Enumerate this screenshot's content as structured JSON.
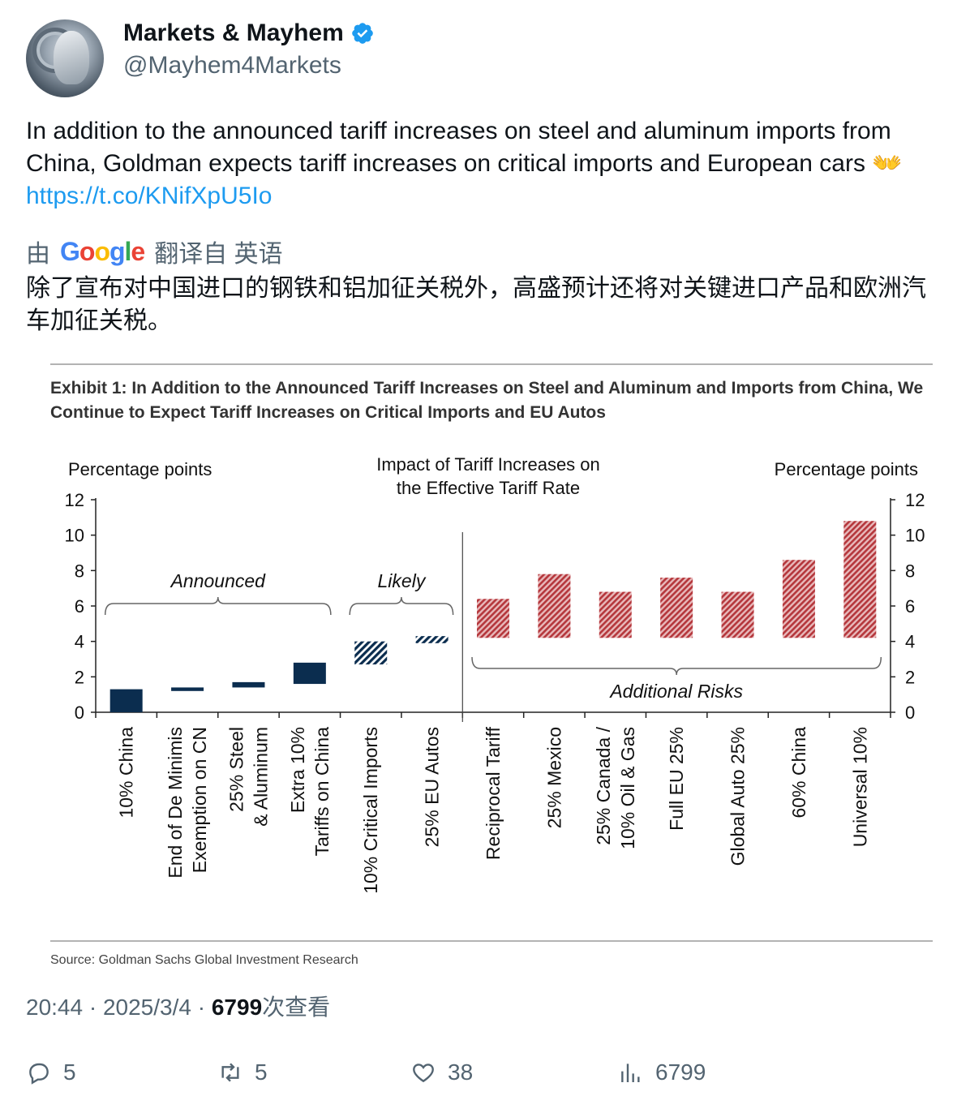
{
  "author": {
    "name": "Markets & Mayhem",
    "handle": "@Mayhem4Markets",
    "verified_icon": "verified-badge-icon",
    "badge_color": "#1d9bf0"
  },
  "tweet": {
    "text": "In addition to the announced tariff increases on steel and aluminum imports from China, Goldman expects tariff increases on critical imports and European cars",
    "emoji": "👐",
    "link": "https://t.co/KNifXpU5Io"
  },
  "translation": {
    "by": "由",
    "google_letters": [
      "G",
      "o",
      "o",
      "g",
      "l",
      "e"
    ],
    "google_colors": [
      "#4285F4",
      "#EA4335",
      "#FBBC05",
      "#4285F4",
      "#34A853",
      "#EA4335"
    ],
    "source_lang": "翻译自 英语",
    "text": "除了宣布对中国进口的钢铁和铝加征关税外，高盛预计还将对关键进口产品和欧洲汽车加征关税。"
  },
  "figure": {
    "exhibit_title_line1": "Exhibit 1: In Addition to the Announced Tariff Increases on Steel and Aluminum and Imports from China, We",
    "exhibit_title_line2": "Continue to Expect Tariff Increases on Critical Imports and EU Autos",
    "source": "Source: Goldman Sachs Global Investment Research"
  },
  "chart_data": {
    "type": "bar",
    "title": "Impact of Tariff Increases on the Effective Tariff Rate",
    "title_lines": [
      "Impact of Tariff Increases on",
      "the Effective Tariff Rate"
    ],
    "ylabel_left": "Percentage points",
    "ylabel_right": "Percentage points",
    "ylim": [
      0,
      12
    ],
    "yticks": [
      "0",
      "2",
      "4",
      "6",
      "8",
      "10",
      "12"
    ],
    "grid": false,
    "groups": [
      {
        "label": "Announced",
        "from": 0,
        "to": 3
      },
      {
        "label": "Likely",
        "from": 4,
        "to": 5
      },
      {
        "label": "Additional Risks",
        "from": 6,
        "to": 12
      }
    ],
    "colors": {
      "announced": "#0b2d4f",
      "likely": "#0b2d4f",
      "risk": "#b5373c"
    },
    "bars": [
      {
        "label": [
          "10% China"
        ],
        "start": 0.0,
        "end": 1.3,
        "style": "announced"
      },
      {
        "label": [
          "End of De Minimis",
          "Exemption on CN"
        ],
        "start": 1.2,
        "end": 1.4,
        "style": "announced"
      },
      {
        "label": [
          "25% Steel",
          "& Aluminum"
        ],
        "start": 1.4,
        "end": 1.7,
        "style": "announced"
      },
      {
        "label": [
          "Extra 10%",
          "Tariffs on China"
        ],
        "start": 1.6,
        "end": 2.8,
        "style": "announced"
      },
      {
        "label": [
          "10% Critical Imports"
        ],
        "start": 2.7,
        "end": 4.0,
        "style": "likely"
      },
      {
        "label": [
          "25% EU Autos"
        ],
        "start": 3.9,
        "end": 4.3,
        "style": "likely"
      },
      {
        "label": [
          "Reciprocal Tariff"
        ],
        "start": 4.2,
        "end": 6.4,
        "style": "risk"
      },
      {
        "label": [
          "25% Mexico"
        ],
        "start": 4.2,
        "end": 7.8,
        "style": "risk"
      },
      {
        "label": [
          "25% Canada /",
          "10% Oil & Gas"
        ],
        "start": 4.2,
        "end": 6.8,
        "style": "risk"
      },
      {
        "label": [
          "Full EU 25%"
        ],
        "start": 4.2,
        "end": 7.6,
        "style": "risk"
      },
      {
        "label": [
          "Global Auto 25%"
        ],
        "start": 4.2,
        "end": 6.8,
        "style": "risk"
      },
      {
        "label": [
          "60% China"
        ],
        "start": 4.2,
        "end": 8.6,
        "style": "risk"
      },
      {
        "label": [
          "Universal 10%"
        ],
        "start": 4.2,
        "end": 10.8,
        "style": "risk"
      }
    ]
  },
  "meta": {
    "time": "20:44",
    "date": "2025/3/4",
    "views": "6799",
    "views_label": "次查看"
  },
  "actions": {
    "replies": "5",
    "retweets": "5",
    "likes": "38",
    "views": "6799"
  }
}
